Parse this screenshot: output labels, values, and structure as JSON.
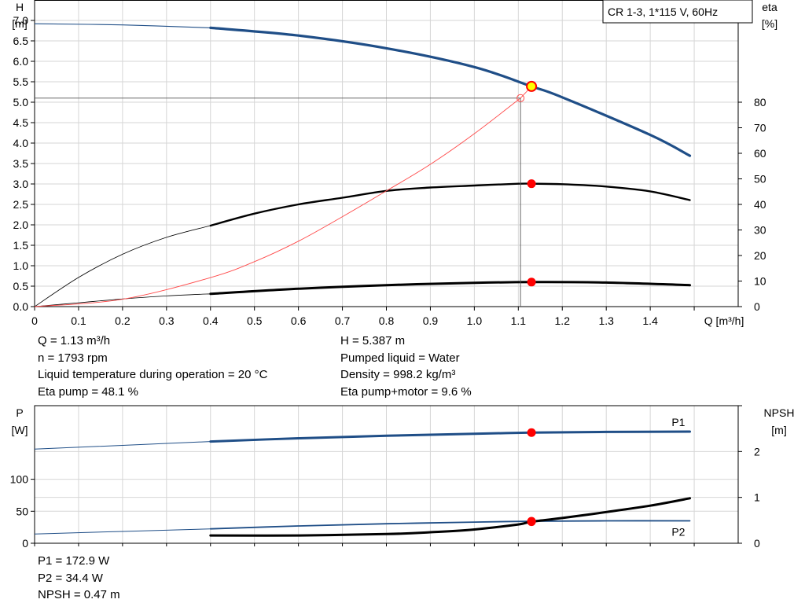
{
  "colors": {
    "head_curve": "#1f4e87",
    "power_curve": "#1f4e87",
    "efficiency_curve": "#000000",
    "npsh_curve": "#000000",
    "system_curve": "#ff4a4a",
    "duty_point": "#ff0000",
    "operating_point_fill": "#ffff00",
    "grid": "#d6d6d6"
  },
  "header_box": {
    "text": "CR 1-3, 1*115 V, 60Hz"
  },
  "info_top": {
    "left": [
      "Q = 1.13 m³/h",
      "n = 1793 rpm",
      "Liquid temperature during operation = 20 °C",
      "Eta pump = 48.1 %"
    ],
    "right": [
      "H = 5.387 m",
      "Pumped liquid = Water",
      "Density = 998.2 kg/m³",
      "Eta pump+motor = 9.6 %"
    ]
  },
  "info_bottom": [
    "P1 = 172.9 W",
    "P2 = 34.4 W",
    "NPSH = 0.47 m"
  ],
  "chart_data": [
    {
      "type": "line",
      "x_label": "Q [m³/h]",
      "xlim": [
        0,
        1.6
      ],
      "x_ticks": [
        "0",
        "0.1",
        "0.2",
        "0.3",
        "0.4",
        "0.5",
        "0.6",
        "0.7",
        "0.8",
        "0.9",
        "1.0",
        "1.1",
        "1.2",
        "1.3",
        "1.4"
      ],
      "y_label": [
        "H",
        "[m]"
      ],
      "ylim": [
        0,
        7.5
      ],
      "y_ticks": [
        "0.0",
        "0.5",
        "1.0",
        "1.5",
        "2.0",
        "2.5",
        "3.0",
        "3.5",
        "4.0",
        "4.5",
        "5.0",
        "5.5",
        "6.0",
        "6.5",
        "7.0"
      ],
      "y2_label": [
        "eta",
        "[%]"
      ],
      "y2_ticks": [
        "0",
        "10",
        "20",
        "30",
        "40",
        "50",
        "60",
        "70",
        "80"
      ],
      "grid": true,
      "operating_point": {
        "q": 1.13,
        "h": 5.387,
        "eta_pump": 48.1,
        "eta_total": 9.6
      },
      "required_point": {
        "q": 1.105,
        "h": 5.1
      },
      "series": [
        {
          "axis": "H",
          "x": [
            0.0,
            0.2,
            0.4,
            0.6,
            0.8,
            1.0,
            1.13,
            1.2,
            1.4,
            1.49
          ],
          "y": [
            6.92,
            6.89,
            6.82,
            6.63,
            6.32,
            5.86,
            5.387,
            5.12,
            4.2,
            3.69
          ]
        },
        {
          "axis": "eta",
          "x": [
            0.0,
            0.1,
            0.2,
            0.3,
            0.4,
            0.5,
            0.6,
            0.7,
            0.8,
            0.9,
            1.0,
            1.1,
            1.13,
            1.2,
            1.3,
            1.4,
            1.49
          ],
          "y": [
            0,
            11.4,
            20.5,
            27.1,
            31.7,
            36.4,
            40.0,
            42.6,
            45.3,
            46.6,
            47.4,
            48.1,
            48.1,
            47.9,
            47.0,
            45.1,
            41.7
          ]
        },
        {
          "axis": "eta",
          "x": [
            0.0,
            0.1,
            0.2,
            0.3,
            0.4,
            0.6,
            0.8,
            1.0,
            1.13,
            1.3,
            1.49
          ],
          "y": [
            0,
            1.5,
            3.0,
            4.2,
            5.0,
            7.0,
            8.4,
            9.3,
            9.6,
            9.4,
            8.4
          ]
        },
        {
          "axis": "H",
          "x": [
            0.0,
            0.2,
            0.4,
            0.5,
            0.6,
            0.7,
            0.8,
            0.9,
            1.0,
            1.105
          ],
          "y": [
            0.0,
            0.18,
            0.71,
            1.1,
            1.6,
            2.2,
            2.83,
            3.48,
            4.23,
            5.1
          ]
        }
      ]
    },
    {
      "type": "line",
      "xlim": [
        0,
        1.6
      ],
      "y_label": [
        "P",
        "[W]"
      ],
      "ylim": [
        0,
        215
      ],
      "y_ticks": [
        "0",
        "50",
        "100"
      ],
      "y2_label": [
        "NPSH",
        "[m]"
      ],
      "y2lim": [
        0,
        3
      ],
      "y2_ticks": [
        "0",
        "1",
        "2"
      ],
      "grid": true,
      "series": [
        {
          "name": "P1",
          "axis": "P",
          "x": [
            0.0,
            0.4,
            0.6,
            0.8,
            1.0,
            1.13,
            1.3,
            1.49
          ],
          "y": [
            147,
            159,
            164,
            168,
            171,
            172.9,
            174,
            174.5
          ]
        },
        {
          "name": "P2",
          "axis": "P",
          "x": [
            0.0,
            0.4,
            0.6,
            0.8,
            1.0,
            1.13,
            1.3,
            1.49
          ],
          "y": [
            14.5,
            22.5,
            27,
            30.5,
            33,
            34.4,
            35,
            35
          ]
        },
        {
          "axis": "NPSH",
          "x": [
            0.4,
            0.6,
            0.8,
            0.9,
            1.0,
            1.1,
            1.13,
            1.2,
            1.3,
            1.4,
            1.49
          ],
          "y": [
            0.17,
            0.17,
            0.2,
            0.24,
            0.3,
            0.41,
            0.47,
            0.55,
            0.68,
            0.82,
            0.98
          ]
        }
      ]
    }
  ]
}
